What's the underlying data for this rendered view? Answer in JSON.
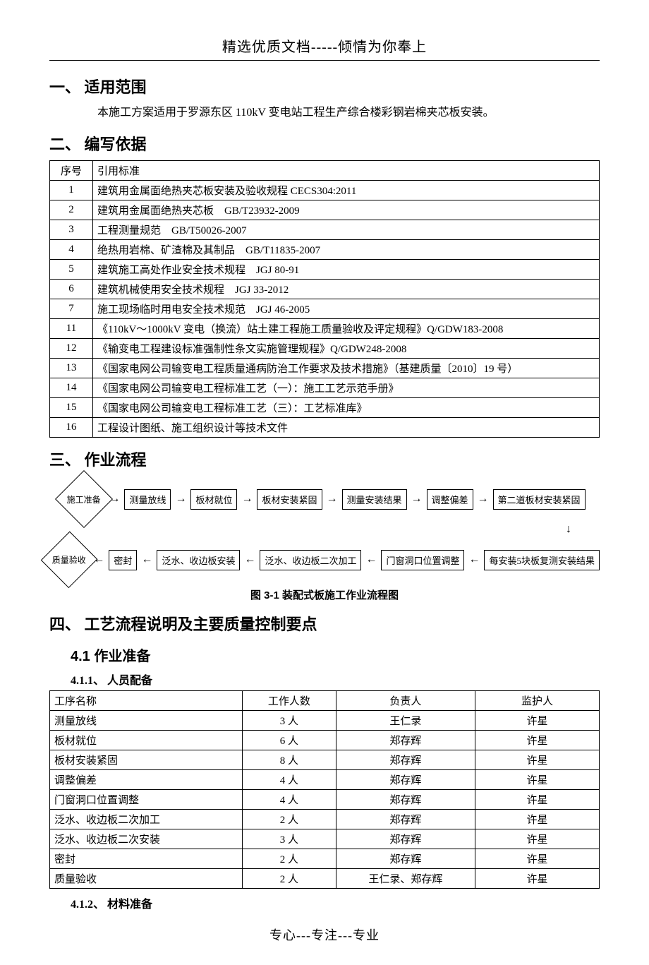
{
  "colors": {
    "text": "#000000",
    "background": "#ffffff",
    "border": "#000000"
  },
  "fonts": {
    "body": "SimSun",
    "heading_size_pt": 22,
    "body_size_pt": 16,
    "table_size_pt": 15,
    "caption_size_pt": 15,
    "flow_size_pt": 13
  },
  "header": "精选优质文档-----倾情为你奉上",
  "footer": "专心---专注---专业",
  "sections": {
    "s1": {
      "num": "一、",
      "title": "适用范围",
      "body": "本施工方案适用于罗源东区 110kV 变电站工程生产综合楼彩钢岩棉夹芯板安装。"
    },
    "s2": {
      "num": "二、",
      "title": "编写依据",
      "table_headers": {
        "idx": "序号",
        "std": "引用标准"
      },
      "rows": [
        {
          "idx": "1",
          "std": "建筑用金属面绝热夹芯板安装及验收规程 CECS304:2011"
        },
        {
          "idx": "2",
          "std": "建筑用金属面绝热夹芯板　GB/T23932-2009"
        },
        {
          "idx": "3",
          "std": "工程测量规范　GB/T50026-2007"
        },
        {
          "idx": "4",
          "std": "绝热用岩棉、矿渣棉及其制品　GB/T11835-2007"
        },
        {
          "idx": "5",
          "std": "建筑施工高处作业安全技术规程　JGJ 80-91"
        },
        {
          "idx": "6",
          "std": "建筑机械使用安全技术规程　JGJ 33-2012"
        },
        {
          "idx": "7",
          "std": "施工现场临时用电安全技术规范　JGJ 46-2005"
        },
        {
          "idx": "11",
          "std": "《110kV～1000kV 变电（换流）站土建工程施工质量验收及评定规程》Q/GDW183-2008"
        },
        {
          "idx": "12",
          "std": "《输变电工程建设标准强制性条文实施管理规程》Q/GDW248-2008"
        },
        {
          "idx": "13",
          "std": "《国家电网公司输变电工程质量通病防治工作要求及技术措施》（基建质量〔2010〕19 号）"
        },
        {
          "idx": "14",
          "std": "《国家电网公司输变电工程标准工艺（一）：施工工艺示范手册》"
        },
        {
          "idx": "15",
          "std": "《国家电网公司输变电工程标准工艺（三）：工艺标准库》"
        },
        {
          "idx": "16",
          "std": "工程设计图纸、施工组织设计等技术文件"
        }
      ]
    },
    "s3": {
      "num": "三、",
      "title": "作业流程",
      "caption": "图 3-1  装配式板施工作业流程图",
      "flow": {
        "type": "flowchart",
        "start": "施工准备",
        "row1": [
          "测量放线",
          "板材就位",
          "板材安装紧固",
          "测量安装结果",
          "调整偏差",
          "第二道板材安装紧固"
        ],
        "row2": [
          "每安装5块板复测安装结果",
          "门窗洞口位置调整",
          "泛水、收边板二次加工",
          "泛水、收边板安装",
          "密封"
        ],
        "end": "质量验收",
        "arrow_right": "→",
        "arrow_left": "←",
        "arrow_down": "↓"
      }
    },
    "s4": {
      "num": "四、",
      "title": "工艺流程说明及主要质量控制要点",
      "sub41": {
        "num": "4.1",
        "title": "作业准备"
      },
      "sub411": {
        "num": "4.1.1、",
        "title": "人员配备",
        "headers": {
          "proc": "工序名称",
          "count": "工作人数",
          "lead": "负责人",
          "watch": "监护人"
        },
        "rows": [
          {
            "proc": "测量放线",
            "count": "3 人",
            "lead": "王仁录",
            "watch": "许星"
          },
          {
            "proc": "板材就位",
            "count": "6 人",
            "lead": "郑存辉",
            "watch": "许星"
          },
          {
            "proc": "板材安装紧固",
            "count": "8 人",
            "lead": "郑存辉",
            "watch": "许星"
          },
          {
            "proc": "调整偏差",
            "count": "4 人",
            "lead": "郑存辉",
            "watch": "许星"
          },
          {
            "proc": "门窗洞口位置调整",
            "count": "4 人",
            "lead": "郑存辉",
            "watch": "许星"
          },
          {
            "proc": "泛水、收边板二次加工",
            "count": "2 人",
            "lead": "郑存辉",
            "watch": "许星"
          },
          {
            "proc": "泛水、收边板二次安装",
            "count": "3 人",
            "lead": "郑存辉",
            "watch": "许星"
          },
          {
            "proc": "密封",
            "count": "2 人",
            "lead": "郑存辉",
            "watch": "许星"
          },
          {
            "proc": "质量验收",
            "count": "2 人",
            "lead": "王仁录、郑存辉",
            "watch": "许星"
          }
        ]
      },
      "sub412": {
        "num": "4.1.2、",
        "title": "材料准备"
      }
    }
  }
}
